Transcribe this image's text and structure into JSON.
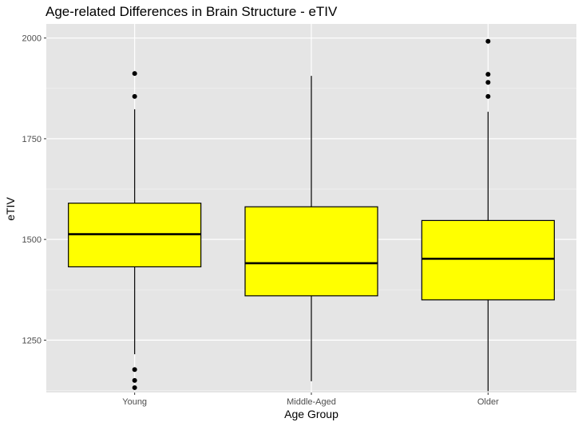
{
  "chart_data": {
    "type": "boxplot",
    "title": "Age-related Differences in Brain Structure - eTIV",
    "xlabel": "Age Group",
    "ylabel": "eTIV",
    "categories": [
      "Young",
      "Middle-Aged",
      "Older"
    ],
    "ylim": [
      1120,
      2035
    ],
    "yticks": [
      1250,
      1500,
      1750,
      2000
    ],
    "grid": true,
    "box_fill": "#ffff00",
    "panel_bg": "#e5e5e5",
    "boxes": [
      {
        "category": "Young",
        "whisker_low": 1215,
        "q1": 1432,
        "median": 1513,
        "q3": 1590,
        "whisker_high": 1823,
        "outliers": [
          1912,
          1855,
          1177,
          1150,
          1132
        ]
      },
      {
        "category": "Middle-Aged",
        "whisker_low": 1148,
        "q1": 1360,
        "median": 1441,
        "q3": 1581,
        "whisker_high": 1906,
        "outliers": []
      },
      {
        "category": "Older",
        "whisker_low": 1123,
        "q1": 1350,
        "median": 1452,
        "q3": 1547,
        "whisker_high": 1817,
        "outliers": [
          1992,
          1910,
          1890,
          1855
        ]
      }
    ]
  }
}
